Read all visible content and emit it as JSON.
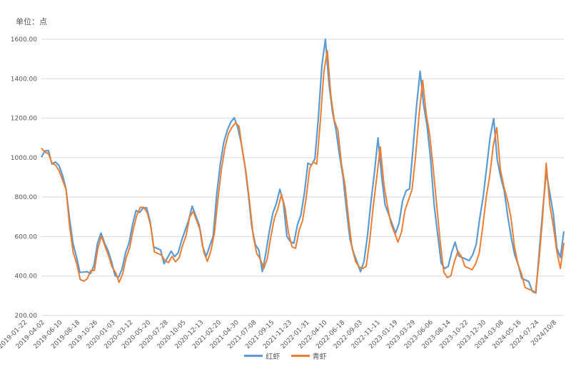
{
  "chart_data": {
    "type": "line",
    "unit_label": "单位：点",
    "ylim": [
      200,
      1600
    ],
    "yticks": [
      "200.00",
      "400.00",
      "600.00",
      "800.00",
      "1000.00",
      "1200.00",
      "1400.00",
      "1600.00"
    ],
    "ytick_values": [
      200,
      400,
      600,
      800,
      1000,
      1200,
      1400,
      1600
    ],
    "xticks": [
      "2019-01-22",
      "2019-04-02",
      "2019-06-10",
      "2019-08-18",
      "2019-10-26",
      "2020-01-03",
      "2020-03-12",
      "2020-05-20",
      "2020-07-28",
      "2020-10-05",
      "2020-12-13",
      "2021-02-20",
      "2021-04-30",
      "2021-07-08",
      "2021-09-15",
      "2021-11-23",
      "2022-01-31",
      "2022-04-10",
      "2022-06-18",
      "2022-09-03",
      "2022-11-11",
      "2023-01-19",
      "2023-03-29",
      "2023-06-06",
      "2023-08-14",
      "2023-10-22",
      "2023-12-30",
      "2024-03-08",
      "2024-05-16",
      "2024-07-24",
      "2024/10/8"
    ],
    "grid": true,
    "legend_position": "bottom",
    "series": [
      {
        "name": "红虾",
        "color": "#5b9bd5",
        "values": [
          1020,
          1040,
          1030,
          950,
          990,
          960,
          900,
          860,
          700,
          560,
          480,
          430,
          420,
          410,
          430,
          460,
          560,
          600,
          580,
          530,
          460,
          420,
          400,
          430,
          500,
          580,
          660,
          720,
          740,
          750,
          740,
          660,
          560,
          540,
          520,
          480,
          500,
          520,
          480,
          530,
          580,
          620,
          700,
          760,
          700,
          640,
          560,
          500,
          540,
          620,
          820,
          960,
          1060,
          1150,
          1180,
          1190,
          1170,
          1080,
          960,
          800,
          660,
          560,
          520,
          440,
          520,
          620,
          700,
          780,
          840,
          760,
          620,
          580,
          560,
          640,
          720,
          820,
          960,
          980,
          1000,
          1200,
          1450,
          1620,
          1380,
          1220,
          1160,
          1020,
          900,
          720,
          600,
          520,
          460,
          440,
          480,
          600,
          760,
          940,
          1100,
          900,
          780,
          720,
          660,
          600,
          680,
          780,
          820,
          860,
          1060,
          1260,
          1420,
          1280,
          1160,
          980,
          780,
          620,
          460,
          420,
          460,
          520,
          560,
          520,
          500,
          480,
          460,
          520,
          560,
          680,
          820,
          960,
          1100,
          1180,
          1000,
          900,
          820,
          720,
          600,
          500,
          440,
          400,
          380,
          360,
          340,
          320,
          520,
          720,
          940,
          820,
          700,
          560,
          500,
          620
        ],
        "anchor": {
          "y": 1610,
          "peak": true
        }
      },
      {
        "name": "青虾",
        "color": "#ed7d31",
        "values": [
          1030,
          1040,
          1020,
          960,
          980,
          940,
          880,
          820,
          660,
          520,
          450,
          400,
          380,
          380,
          410,
          440,
          540,
          590,
          570,
          510,
          440,
          400,
          380,
          410,
          480,
          560,
          640,
          700,
          730,
          760,
          720,
          640,
          540,
          520,
          500,
          460,
          480,
          500,
          460,
          510,
          560,
          600,
          680,
          740,
          680,
          620,
          540,
          480,
          520,
          600,
          800,
          940,
          1040,
          1140,
          1160,
          1170,
          1140,
          1040,
          920,
          760,
          620,
          520,
          480,
          420,
          500,
          600,
          680,
          760,
          820,
          740,
          600,
          560,
          540,
          620,
          700,
          800,
          940,
          960,
          980,
          1180,
          1420,
          1560,
          1320,
          1180,
          1120,
          980,
          860,
          680,
          560,
          480,
          440,
          420,
          460,
          580,
          740,
          920,
          1060,
          860,
          740,
          680,
          620,
          560,
          640,
          740,
          780,
          820,
          1020,
          1220,
          1380,
          1240,
          1120,
          940,
          740,
          580,
          420,
          380,
          420,
          480,
          520,
          480,
          460,
          440,
          420,
          480,
          520,
          640,
          780,
          920,
          1060,
          1140,
          960,
          860,
          780,
          680,
          560,
          460,
          400,
          360,
          340,
          320,
          300,
          500,
          700,
          960,
          780,
          660,
          520,
          420,
          580
        ],
        "anchor": {
          "y": 1560,
          "peak": true
        }
      }
    ]
  }
}
